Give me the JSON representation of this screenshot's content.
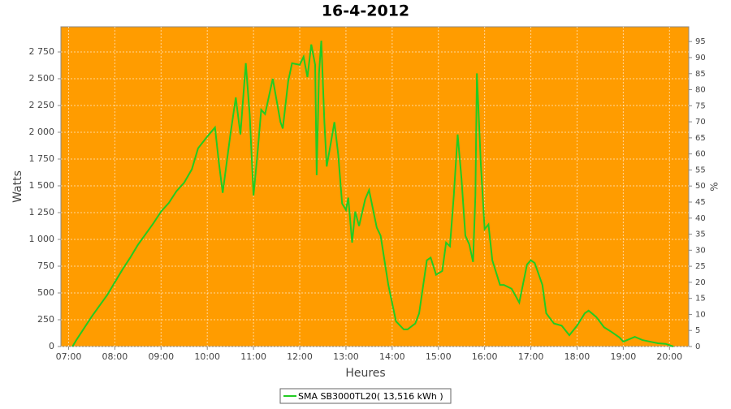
{
  "chart_data": {
    "type": "line",
    "title": "16-4-2012",
    "x_label": "Heures",
    "y_label": "Watts",
    "y2_label": "%",
    "background": "#ff9c00",
    "grid": true,
    "legend": "bottom",
    "x": [
      "07:05",
      "07:10",
      "07:20",
      "07:30",
      "07:40",
      "07:50",
      "08:00",
      "08:10",
      "08:20",
      "08:30",
      "08:40",
      "08:50",
      "09:00",
      "09:10",
      "09:20",
      "09:30",
      "09:40",
      "09:48",
      "10:00",
      "10:10",
      "10:15",
      "10:20",
      "10:30",
      "10:37",
      "10:43",
      "10:50",
      "10:55",
      "11:00",
      "11:05",
      "11:10",
      "11:15",
      "11:25",
      "11:35",
      "11:38",
      "11:45",
      "11:50",
      "12:00",
      "12:05",
      "12:10",
      "12:15",
      "12:20",
      "12:22",
      "12:25",
      "12:28",
      "12:32",
      "12:35",
      "12:40",
      "12:45",
      "12:50",
      "12:55",
      "13:00",
      "13:03",
      "13:08",
      "13:12",
      "13:17",
      "13:25",
      "13:30",
      "13:40",
      "13:45",
      "13:55",
      "14:05",
      "14:15",
      "14:20",
      "14:30",
      "14:35",
      "14:45",
      "14:50",
      "14:57",
      "15:05",
      "15:10",
      "15:15",
      "15:20",
      "15:25",
      "15:30",
      "15:35",
      "15:40",
      "15:45",
      "15:48",
      "15:50",
      "15:55",
      "16:00",
      "16:05",
      "16:10",
      "16:20",
      "16:25",
      "16:35",
      "16:45",
      "16:55",
      "17:00",
      "17:05",
      "17:15",
      "17:20",
      "17:30",
      "17:40",
      "17:50",
      "18:00",
      "18:10",
      "18:15",
      "18:25",
      "18:35",
      "18:45",
      "18:55",
      "19:00",
      "19:05",
      "19:15",
      "19:25",
      "19:35",
      "19:45",
      "19:55",
      "20:05"
    ],
    "series": [
      {
        "name": "SMA SB3000TL20( 13,516 kWh )",
        "color": "#22cc22",
        "values": [
          0,
          60,
          170,
          280,
          380,
          480,
          600,
          720,
          830,
          950,
          1050,
          1150,
          1260,
          1340,
          1450,
          1530,
          1655,
          1850,
          1960,
          2045,
          1720,
          1435,
          1980,
          2325,
          1980,
          2645,
          2170,
          1410,
          1790,
          2210,
          2170,
          2500,
          2095,
          2035,
          2475,
          2645,
          2630,
          2705,
          2515,
          2820,
          2630,
          1600,
          2550,
          2855,
          2095,
          1680,
          1885,
          2095,
          1790,
          1335,
          1275,
          1390,
          970,
          1260,
          1125,
          1375,
          1460,
          1110,
          1035,
          575,
          235,
          160,
          160,
          215,
          310,
          805,
          830,
          670,
          705,
          970,
          935,
          1410,
          1980,
          1565,
          1035,
          955,
          790,
          1410,
          2550,
          1715,
          1095,
          1140,
          805,
          575,
          575,
          540,
          410,
          765,
          805,
          780,
          575,
          310,
          215,
          195,
          105,
          195,
          310,
          335,
          275,
          180,
          135,
          85,
          45,
          60,
          90,
          60,
          45,
          30,
          25,
          0
        ]
      }
    ],
    "xlim": [
      "06:50",
      "20:25"
    ],
    "xticks": [
      "07:00",
      "08:00",
      "09:00",
      "10:00",
      "11:00",
      "12:00",
      "13:00",
      "14:00",
      "15:00",
      "16:00",
      "17:00",
      "18:00",
      "19:00",
      "20:00"
    ],
    "ylim": [
      0,
      2985
    ],
    "yticks": [
      0,
      250,
      500,
      750,
      {
        "value": 1000,
        "label": "1 000"
      },
      {
        "value": 1250,
        "label": "1 250"
      },
      {
        "value": 1500,
        "label": "1 500"
      },
      {
        "value": 1750,
        "label": "1 750"
      },
      {
        "value": 2000,
        "label": "2 000"
      },
      {
        "value": 2250,
        "label": "2 250"
      },
      {
        "value": 2500,
        "label": "2 500"
      },
      {
        "value": 2750,
        "label": "2 750"
      }
    ],
    "y2lim": [
      0,
      99.6
    ],
    "y2ticks": [
      0,
      5,
      10,
      15,
      20,
      25,
      30,
      35,
      40,
      45,
      50,
      55,
      60,
      65,
      70,
      75,
      80,
      85,
      90,
      95
    ]
  }
}
